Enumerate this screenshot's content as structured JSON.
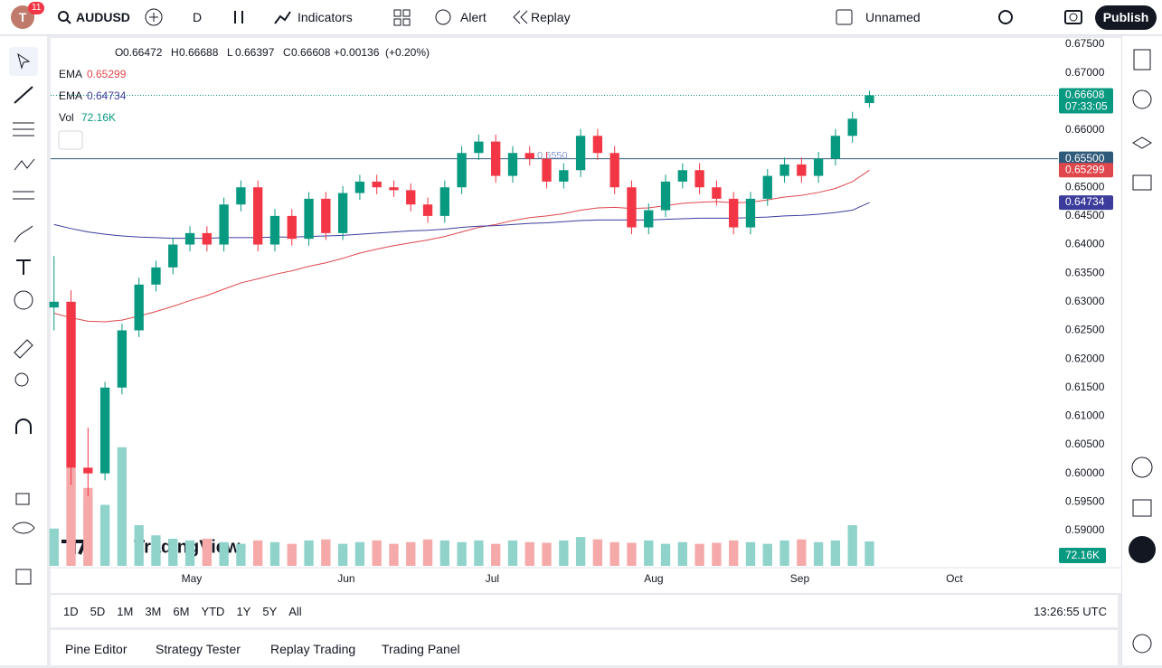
{
  "toolbar": {
    "avatar": "T",
    "badge": "11",
    "symbol": "AUDUSD",
    "interval": "D",
    "indicators": "Indicators",
    "alert": "Alert",
    "replay": "Replay",
    "layout": "Unnamed",
    "publish": "Publish"
  },
  "chart_data": {
    "type": "candlestick",
    "legend": {
      "ohlc": [
        "O",
        "0.66472",
        "H",
        "0.66688",
        "L",
        "0.66397",
        "C",
        "0.66608"
      ],
      "change": "+0.00136",
      "change_pct": "(+0.20%)"
    },
    "open": [
      0.629,
      0.63,
      0.601,
      0.6,
      0.615,
      0.625,
      0.633,
      0.636,
      0.64,
      0.642,
      0.64,
      0.647,
      0.65,
      0.64,
      0.645,
      0.641,
      0.648,
      0.642,
      0.649,
      0.651,
      0.65,
      0.6495,
      0.647,
      0.645,
      0.65,
      0.656,
      0.658,
      0.652,
      0.656,
      0.655,
      0.651,
      0.653,
      0.659,
      0.656,
      0.65,
      0.643,
      0.646,
      0.651,
      0.653,
      0.65,
      0.648,
      0.643,
      0.648,
      0.652,
      0.654,
      0.652,
      0.655,
      0.659,
      0.66472
    ],
    "high": [
      0.638,
      0.632,
      0.608,
      0.616,
      0.6262,
      0.6342,
      0.6372,
      0.6412,
      0.6432,
      0.6432,
      0.6482,
      0.6512,
      0.6512,
      0.6462,
      0.6462,
      0.6492,
      0.6492,
      0.6502,
      0.6522,
      0.6522,
      0.6512,
      0.6507,
      0.6482,
      0.6512,
      0.6572,
      0.6592,
      0.6592,
      0.6572,
      0.6572,
      0.6562,
      0.6542,
      0.6602,
      0.6602,
      0.6572,
      0.6512,
      0.6472,
      0.6522,
      0.6542,
      0.6542,
      0.6512,
      0.6492,
      0.6492,
      0.6532,
      0.6552,
      0.6552,
      0.6562,
      0.6602,
      0.6632,
      0.66688
    ],
    "low": [
      0.625,
      0.598,
      0.596,
      0.5988,
      0.6138,
      0.6238,
      0.6318,
      0.6348,
      0.6388,
      0.6388,
      0.6388,
      0.6458,
      0.6388,
      0.6388,
      0.6398,
      0.6398,
      0.6408,
      0.6408,
      0.6478,
      0.6488,
      0.6483,
      0.6458,
      0.6438,
      0.6438,
      0.6488,
      0.6548,
      0.6508,
      0.6508,
      0.6538,
      0.6498,
      0.6498,
      0.6518,
      0.6548,
      0.6488,
      0.6418,
      0.6418,
      0.6448,
      0.6498,
      0.6488,
      0.6468,
      0.6418,
      0.6418,
      0.6468,
      0.6508,
      0.6508,
      0.6508,
      0.6538,
      0.6578,
      0.66397
    ],
    "close": [
      0.63,
      0.601,
      0.6,
      0.615,
      0.625,
      0.633,
      0.636,
      0.64,
      0.642,
      0.64,
      0.647,
      0.65,
      0.64,
      0.645,
      0.641,
      0.648,
      0.642,
      0.649,
      0.651,
      0.65,
      0.6495,
      0.647,
      0.645,
      0.65,
      0.656,
      0.658,
      0.652,
      0.656,
      0.655,
      0.651,
      0.653,
      0.659,
      0.656,
      0.65,
      0.643,
      0.646,
      0.651,
      0.653,
      0.65,
      0.648,
      0.643,
      0.648,
      0.652,
      0.654,
      0.652,
      0.655,
      0.659,
      0.662,
      0.66608
    ],
    "up_color": "#089981",
    "down_color": "#f23645",
    "series": [
      {
        "name": "EMA",
        "value_label": "0.65299",
        "color": "#e0474c",
        "values": [
          0.628,
          0.6272,
          0.6266,
          0.6265,
          0.6268,
          0.6275,
          0.6283,
          0.6292,
          0.6302,
          0.6311,
          0.6322,
          0.6333,
          0.634,
          0.6348,
          0.6354,
          0.6362,
          0.6368,
          0.6376,
          0.6385,
          0.6392,
          0.6398,
          0.6403,
          0.6408,
          0.6414,
          0.6422,
          0.643,
          0.6435,
          0.6442,
          0.6447,
          0.645,
          0.6454,
          0.646,
          0.6464,
          0.6465,
          0.6463,
          0.6464,
          0.6468,
          0.6472,
          0.6474,
          0.6475,
          0.6473,
          0.6474,
          0.6478,
          0.6483,
          0.6486,
          0.6491,
          0.6498,
          0.651,
          0.65299
        ]
      },
      {
        "name": "EMA",
        "value_label": "0.64734",
        "color": "#3c3c9c",
        "values": [
          0.6435,
          0.6428,
          0.6422,
          0.6418,
          0.6415,
          0.6413,
          0.6412,
          0.6411,
          0.6411,
          0.6411,
          0.6412,
          0.6412,
          0.6412,
          0.6413,
          0.6413,
          0.6414,
          0.6415,
          0.6416,
          0.6418,
          0.642,
          0.6422,
          0.6424,
          0.6425,
          0.6427,
          0.643,
          0.6432,
          0.6433,
          0.6435,
          0.6437,
          0.6438,
          0.644,
          0.6442,
          0.6443,
          0.6443,
          0.6443,
          0.6443,
          0.6444,
          0.6445,
          0.6446,
          0.6446,
          0.6446,
          0.6447,
          0.6448,
          0.645,
          0.6451,
          0.6453,
          0.6456,
          0.646,
          0.64734
        ]
      }
    ],
    "volume": {
      "name": "Vol",
      "value_label": "72.16K",
      "ylim": [
        0,
        400
      ],
      "up_color": "#8fd3cb",
      "down_color": "#f5a9a9",
      "values": [
        110,
        290,
        230,
        180,
        350,
        120,
        90,
        80,
        75,
        80,
        70,
        65,
        75,
        70,
        65,
        75,
        78,
        65,
        70,
        75,
        65,
        70,
        78,
        75,
        70,
        75,
        65,
        75,
        70,
        68,
        75,
        85,
        78,
        70,
        68,
        75,
        65,
        70,
        65,
        68,
        75,
        70,
        65,
        75,
        78,
        70,
        75,
        120,
        72.16
      ]
    },
    "last_price": {
      "value": 0.66608,
      "label": "0.66608",
      "countdown": "07:33:05"
    },
    "hline": {
      "value": 0.655,
      "label": "0.65500",
      "chart_label": "0.6550",
      "color": "#2f5a7a"
    },
    "ylim": [
      0.59,
      0.675
    ],
    "yticks": [
      {
        "value": 0.675,
        "label": "0.67500"
      },
      {
        "value": 0.67,
        "label": "0.67000"
      },
      {
        "value": 0.665,
        "label": "0.66500"
      },
      {
        "value": 0.66,
        "label": "0.66000"
      },
      {
        "value": 0.655,
        "label": "0.65500"
      },
      {
        "value": 0.65,
        "label": "0.65000"
      },
      {
        "value": 0.645,
        "label": "0.64500"
      },
      {
        "value": 0.64,
        "label": "0.64000"
      },
      {
        "value": 0.635,
        "label": "0.63500"
      },
      {
        "value": 0.63,
        "label": "0.63000"
      },
      {
        "value": 0.625,
        "label": "0.62500"
      },
      {
        "value": 0.62,
        "label": "0.62000"
      },
      {
        "value": 0.615,
        "label": "0.61500"
      },
      {
        "value": 0.61,
        "label": "0.61000"
      },
      {
        "value": 0.605,
        "label": "0.60500"
      },
      {
        "value": 0.6,
        "label": "0.60000"
      },
      {
        "value": 0.595,
        "label": "0.59500"
      },
      {
        "value": 0.59,
        "label": "0.59000"
      }
    ],
    "xlim": [
      -0.2,
      59.1
    ],
    "xticks": [
      {
        "value": 8.1,
        "label": "May"
      },
      {
        "value": 17.2,
        "label": "Jun"
      },
      {
        "value": 25.8,
        "label": "Jul"
      },
      {
        "value": 35.3,
        "label": "Aug"
      },
      {
        "value": 43.9,
        "label": "Sep"
      },
      {
        "value": 53,
        "label": "Oct"
      }
    ],
    "watermark": "TradingView"
  },
  "bottom_bar": {
    "ranges": [
      "1D",
      "5D",
      "1M",
      "3M",
      "6M",
      "YTD",
      "1Y",
      "5Y",
      "All"
    ],
    "clock": "13:26:55 UTC"
  },
  "panels": [
    "Pine Editor",
    "Strategy Tester",
    "Replay Trading",
    "Trading Panel"
  ]
}
